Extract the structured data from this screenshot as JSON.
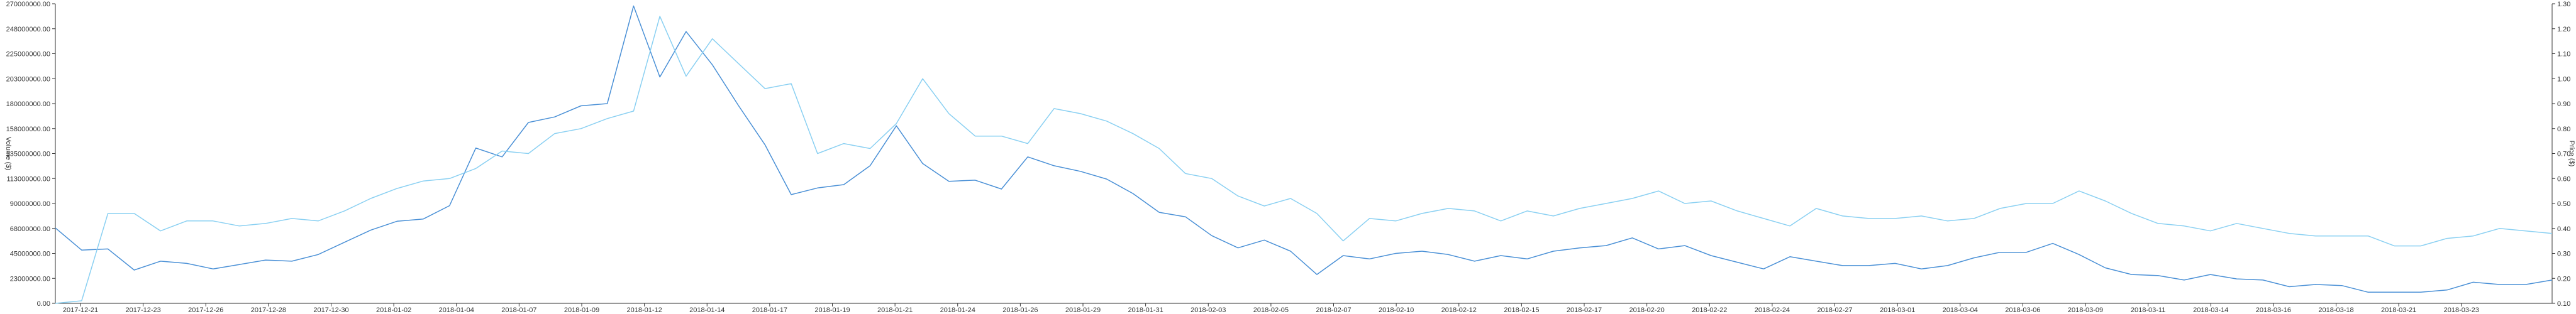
{
  "chart_data": {
    "type": "line",
    "title": "",
    "xlabel": "",
    "y_left_label": "Volume ($)",
    "y_right_label": "Price ($)",
    "y_left_range": [
      0,
      270000000
    ],
    "y_right_range": [
      0.1,
      1.3
    ],
    "y_left_ticks": [
      "0.00",
      "23000000.00",
      "45000000.00",
      "68000000.00",
      "90000000.00",
      "113000000.00",
      "135000000.00",
      "158000000.00",
      "180000000.00",
      "203000000.00",
      "225000000.00",
      "248000000.00",
      "270000000.00"
    ],
    "y_right_ticks": [
      "0.10",
      "0.20",
      "0.30",
      "0.40",
      "0.50",
      "0.60",
      "0.70",
      "0.80",
      "0.90",
      "1.00",
      "1.10",
      "1.20",
      "1.30"
    ],
    "x_tick_labels": [
      "2017-12-21",
      "2017-12-23",
      "2017-12-26",
      "2017-12-28",
      "2017-12-30",
      "2018-01-02",
      "2018-01-04",
      "2018-01-07",
      "2018-01-09",
      "2018-01-12",
      "2018-01-14",
      "2018-01-17",
      "2018-01-19",
      "2018-01-21",
      "2018-01-24",
      "2018-01-26",
      "2018-01-29",
      "2018-01-31",
      "2018-02-03",
      "2018-02-05",
      "2018-02-07",
      "2018-02-10",
      "2018-02-12",
      "2018-02-15",
      "2018-02-17",
      "2018-02-20",
      "2018-02-22",
      "2018-02-24",
      "2018-02-27",
      "2018-03-01",
      "2018-03-04",
      "2018-03-06",
      "2018-03-09",
      "2018-03-11",
      "2018-03-14",
      "2018-03-16",
      "2018-03-18",
      "2018-03-21",
      "2018-03-23"
    ],
    "grid": false,
    "legend": "none",
    "series": [
      {
        "axis": "left",
        "color": "#4a90d6",
        "values": [
          68000000,
          48000000,
          49000000,
          30000000,
          38000000,
          36000000,
          31000000,
          35000000,
          39000000,
          38000000,
          44000000,
          55000000,
          66000000,
          74000000,
          76000000,
          88000000,
          140000000,
          132000000,
          163000000,
          168000000,
          178000000,
          180000000,
          268000000,
          204000000,
          245000000,
          215000000,
          178000000,
          143000000,
          98000000,
          104000000,
          107000000,
          124000000,
          160000000,
          126000000,
          110000000,
          111000000,
          103000000,
          132000000,
          124000000,
          119000000,
          112000000,
          99000000,
          82000000,
          78000000,
          61000000,
          50000000,
          57000000,
          47000000,
          26000000,
          43000000,
          40000000,
          45000000,
          47000000,
          44000000,
          38000000,
          43000000,
          40000000,
          47000000,
          50000000,
          52000000,
          59000000,
          49000000,
          52000000,
          43000000,
          37000000,
          31000000,
          42000000,
          38000000,
          34000000,
          34000000,
          36000000,
          31000000,
          34000000,
          41000000,
          46000000,
          46000000,
          54000000,
          44000000,
          32000000,
          26000000,
          25000000,
          21000000,
          26000000,
          22000000,
          21000000,
          15000000,
          17000000,
          16000000,
          10000000,
          10000000,
          10000000,
          12000000,
          19000000,
          17000000,
          17000000,
          21000000
        ]
      },
      {
        "axis": "right",
        "color": "#8ad0f2",
        "values": [
          0.08,
          0.11,
          0.46,
          0.46,
          0.39,
          0.43,
          0.43,
          0.41,
          0.42,
          0.44,
          0.43,
          0.47,
          0.52,
          0.56,
          0.59,
          0.6,
          0.64,
          0.71,
          0.7,
          0.78,
          0.8,
          0.84,
          0.87,
          1.25,
          1.01,
          1.16,
          1.06,
          0.96,
          0.98,
          0.7,
          0.74,
          0.72,
          0.82,
          1.0,
          0.86,
          0.77,
          0.77,
          0.74,
          0.88,
          0.86,
          0.83,
          0.78,
          0.72,
          0.62,
          0.6,
          0.53,
          0.49,
          0.52,
          0.46,
          0.35,
          0.44,
          0.43,
          0.46,
          0.48,
          0.47,
          0.43,
          0.47,
          0.45,
          0.48,
          0.5,
          0.52,
          0.55,
          0.5,
          0.51,
          0.47,
          0.44,
          0.41,
          0.48,
          0.45,
          0.44,
          0.44,
          0.45,
          0.43,
          0.44,
          0.48,
          0.5,
          0.5,
          0.55,
          0.51,
          0.46,
          0.42,
          0.41,
          0.39,
          0.42,
          0.4,
          0.38,
          0.37,
          0.37,
          0.37,
          0.33,
          0.33,
          0.36,
          0.37,
          0.4,
          0.39,
          0.38
        ]
      }
    ]
  }
}
